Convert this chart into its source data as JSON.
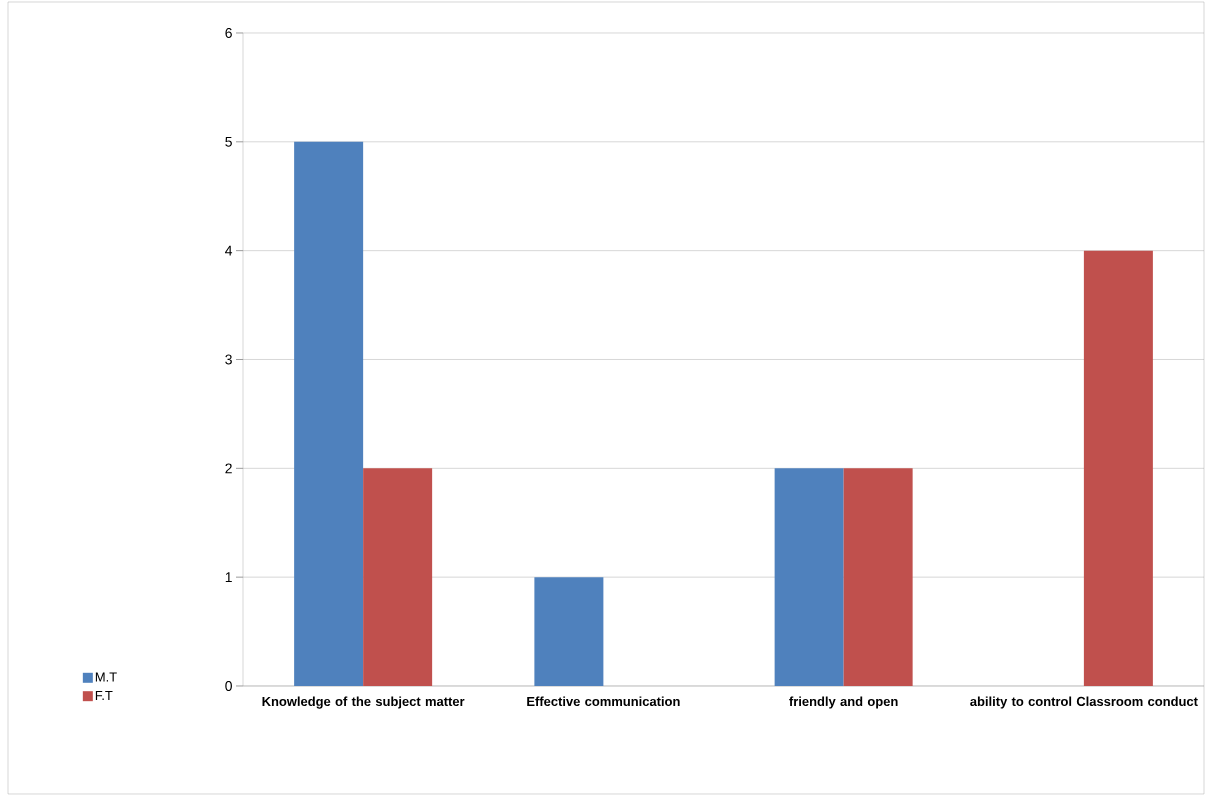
{
  "chart_data": {
    "type": "bar",
    "categories": [
      "Knowledge of the subject matter",
      "Effective communication",
      "friendly and open",
      "ability to control Classroom conduct"
    ],
    "series": [
      {
        "name": "M.T",
        "color": "#4f81bd",
        "values": [
          5,
          1,
          2,
          0
        ]
      },
      {
        "name": "F.T",
        "color": "#c0504d",
        "values": [
          2,
          0,
          2,
          4
        ]
      }
    ],
    "ylim": [
      0,
      6
    ],
    "yticks": [
      0,
      1,
      2,
      3,
      4,
      5,
      6
    ],
    "grid": "y",
    "legend": "left"
  }
}
